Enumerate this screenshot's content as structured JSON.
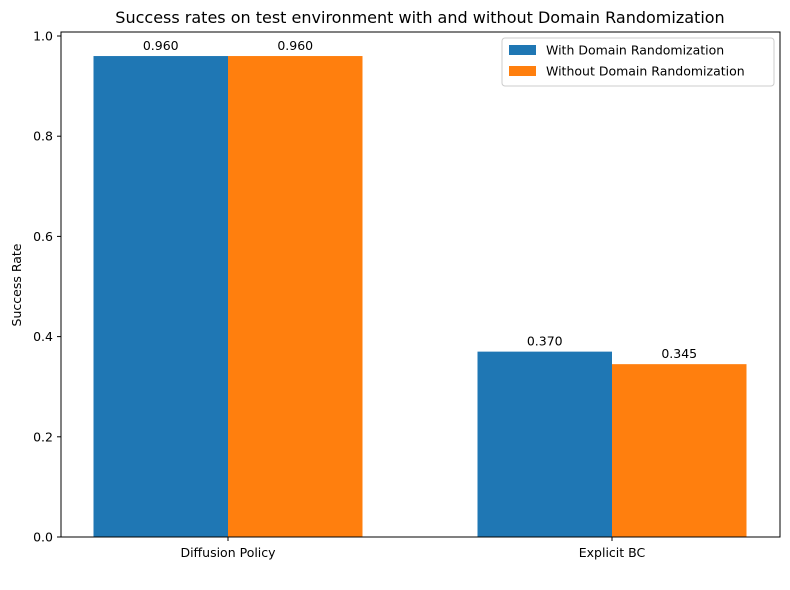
{
  "chart_data": {
    "type": "bar",
    "title": "Success rates on test environment with and without Domain Randomization",
    "xlabel": "",
    "ylabel": "Success Rate",
    "categories": [
      "Diffusion Policy",
      "Explicit BC"
    ],
    "series": [
      {
        "name": "With Domain Randomization",
        "values": [
          0.96,
          0.37
        ],
        "labels": [
          "0.960",
          "0.370"
        ],
        "color": "#1f77b4"
      },
      {
        "name": "Without Domain Randomization",
        "values": [
          0.96,
          0.345
        ],
        "labels": [
          "0.960",
          "0.345"
        ],
        "color": "#ff7f0e"
      }
    ],
    "ylim": [
      0,
      1.008
    ],
    "yticks": [
      0.0,
      0.2,
      0.4,
      0.6,
      0.8,
      1.0
    ],
    "ytick_labels": [
      "0.0",
      "0.2",
      "0.4",
      "0.6",
      "0.8",
      "1.0"
    ],
    "grid": false,
    "legend": "top-right"
  }
}
